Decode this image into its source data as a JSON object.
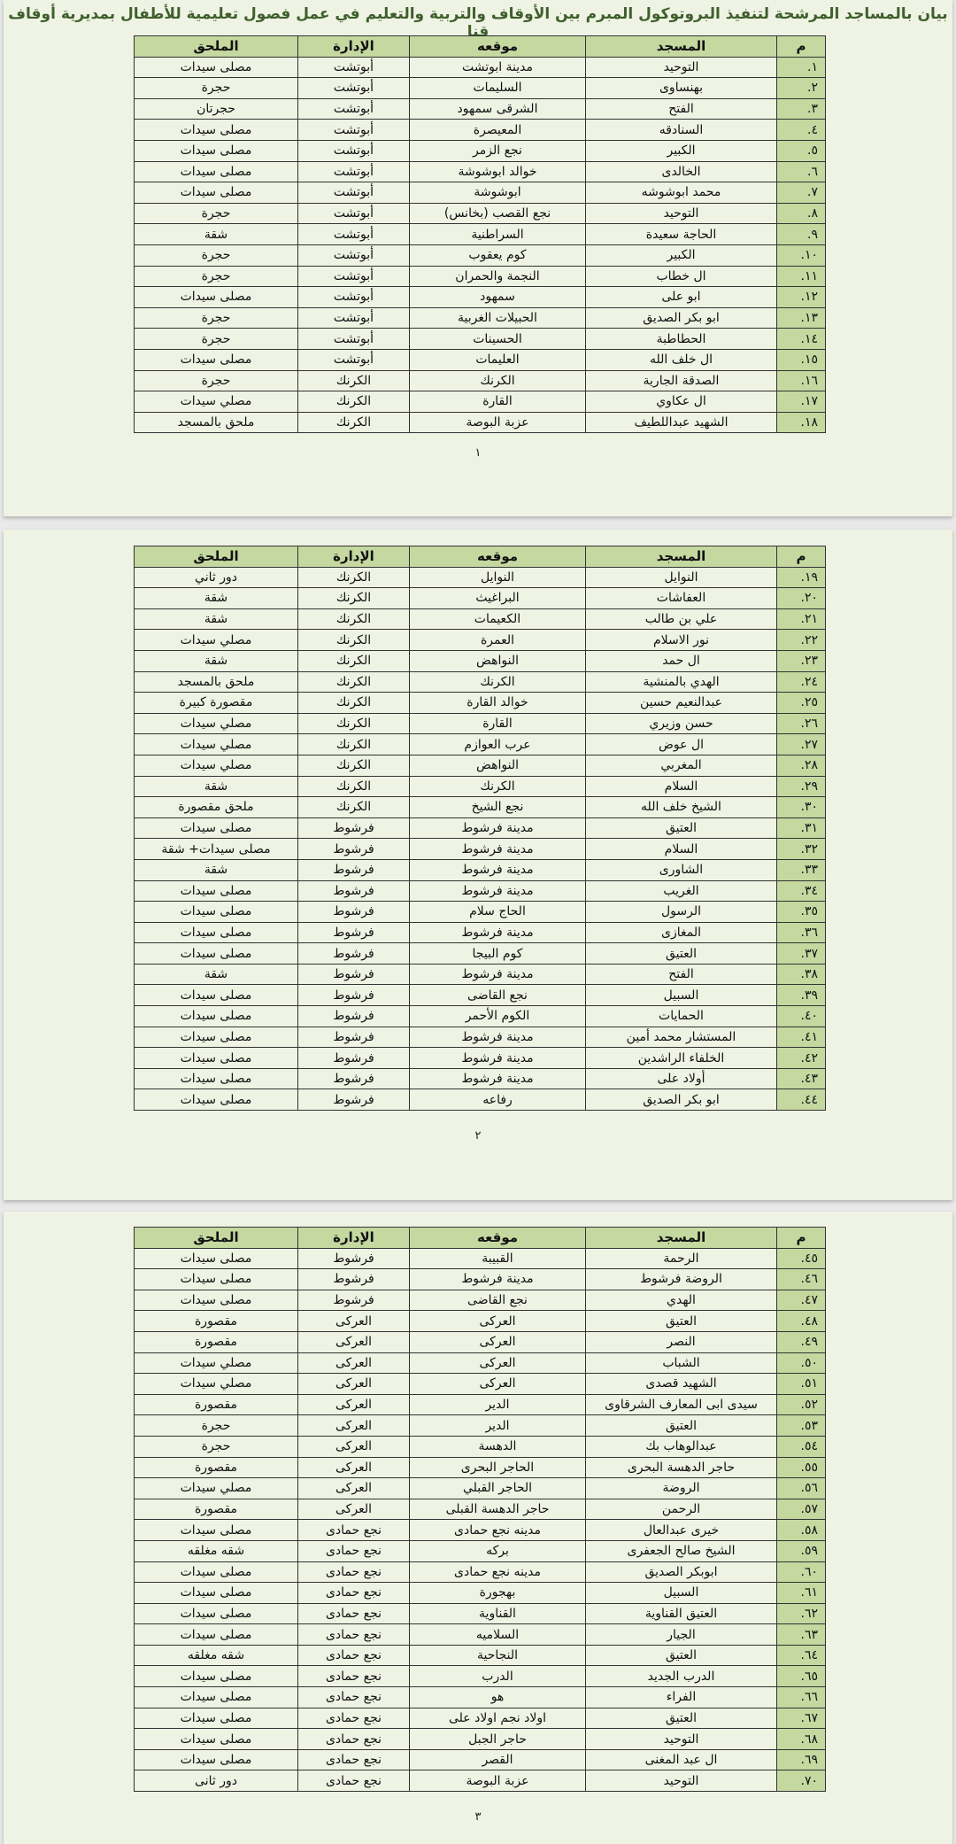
{
  "title": "بيان بالمساجد المرشحة لتنفيذ البروتوكول المبرم بين الأوقاف والتربية والتعليم في عمل فصول تعليمية للأطفال بمديرية أوقاف قنا",
  "columns": [
    "م",
    "المسجد",
    "موقعه",
    "الإدارة",
    "الملحق"
  ],
  "colors": {
    "page_bg": "#eef3e3",
    "header_bg": "#c4d8a0",
    "title": "#3f5f2c"
  },
  "pages": [
    {
      "page_number": "١",
      "rows": [
        [
          "١.",
          "التوحيد",
          "مدينة ابوتشت",
          "أبوتشت",
          "مصلى سيدات"
        ],
        [
          "٢.",
          "بهنساوى",
          "السليمات",
          "أبوتشت",
          "حجرة"
        ],
        [
          "٣.",
          "الفتح",
          "الشرقى سمهود",
          "أبوتشت",
          "حجرتان"
        ],
        [
          "٤.",
          "السنادقه",
          "المعيصرة",
          "أبوتشت",
          "مصلى سيدات"
        ],
        [
          "٥.",
          "الكبير",
          "نجع الزمر",
          "أبوتشت",
          "مصلى سيدات"
        ],
        [
          "٦.",
          "الخالدى",
          "خوالد ابوشوشة",
          "أبوتشت",
          "مصلى سيدات"
        ],
        [
          "٧.",
          "محمد ابوشوشه",
          "ابوشوشة",
          "أبوتشت",
          "مصلى سيدات"
        ],
        [
          "٨.",
          "التوحيد",
          "نجع القصب (بخانس)",
          "أبوتشت",
          "حجرة"
        ],
        [
          "٩.",
          "الحاجة سعيدة",
          "السراطنية",
          "أبوتشت",
          "شقة"
        ],
        [
          "١٠.",
          "الكبير",
          "كوم يعقوب",
          "أبوتشت",
          "حجرة"
        ],
        [
          "١١.",
          "ال خطاب",
          "النجمة والحمران",
          "أبوتشت",
          "حجرة"
        ],
        [
          "١٢.",
          "ابو على",
          "سمهود",
          "أبوتشت",
          "مصلى سيدات"
        ],
        [
          "١٣.",
          "ابو بكر الصديق",
          "الحبيلات الغربية",
          "أبوتشت",
          "حجرة"
        ],
        [
          "١٤.",
          "الحطاطبة",
          "الحسينات",
          "أبوتشت",
          "حجرة"
        ],
        [
          "١٥.",
          "ال خلف الله",
          "العليمات",
          "أبوتشت",
          "مصلى سيدات"
        ],
        [
          "١٦.",
          "الصدقة الجارية",
          "الكرنك",
          "الكرنك",
          "حجرة"
        ],
        [
          "١٧.",
          "ال عكاوي",
          "القارة",
          "الكرنك",
          "مصلي سيدات"
        ],
        [
          "١٨.",
          "الشهيد عبداللطيف",
          "عزبة البوصة",
          "الكرنك",
          "ملحق بالمسجد"
        ]
      ]
    },
    {
      "page_number": "٢",
      "rows": [
        [
          "١٩.",
          "النوايل",
          "النوايل",
          "الكرنك",
          "دور ثاني"
        ],
        [
          "٢٠.",
          "العفاشات",
          "البراغيث",
          "الكرنك",
          "شقة"
        ],
        [
          "٢١.",
          "علي بن طالب",
          "الكعيمات",
          "الكرنك",
          "شقة"
        ],
        [
          "٢٢.",
          "نور الاسلام",
          "العمرة",
          "الكرنك",
          "مصلي سيدات"
        ],
        [
          "٢٣.",
          "ال حمد",
          "النواهض",
          "الكرنك",
          "شقة"
        ],
        [
          "٢٤.",
          "الهدي بالمنشية",
          "الكرنك",
          "الكرنك",
          "ملحق بالمسجد"
        ],
        [
          "٢٥.",
          "عبدالنعيم حسين",
          "خوالد القارة",
          "الكرنك",
          "مقصورة كبيرة"
        ],
        [
          "٢٦.",
          "حسن وزيري",
          "القارة",
          "الكرنك",
          "مصلي سيدات"
        ],
        [
          "٢٧.",
          "ال عوض",
          "عرب العوازم",
          "الكرنك",
          "مصلي سيدات"
        ],
        [
          "٢٨.",
          "المغربي",
          "النواهض",
          "الكرنك",
          "مصلي سيدات"
        ],
        [
          "٢٩.",
          "السلام",
          "الكرنك",
          "الكرنك",
          "شقة"
        ],
        [
          "٣٠.",
          "الشيخ خلف الله",
          "نجع الشيخ",
          "الكرنك",
          "ملحق مقصورة"
        ],
        [
          "٣١.",
          "العتيق",
          "مدينة فرشوط",
          "فرشوط",
          "مصلى سيدات"
        ],
        [
          "٣٢.",
          "السلام",
          "مدينة فرشوط",
          "فرشوط",
          "مصلى سيدات+ شقة"
        ],
        [
          "٣٣.",
          "الشاورى",
          "مدينة فرشوط",
          "فرشوط",
          "شقة"
        ],
        [
          "٣٤.",
          "الغريب",
          "مدينة فرشوط",
          "فرشوط",
          "مصلى سيدات"
        ],
        [
          "٣٥.",
          "الرسول",
          "الحاج سلام",
          "فرشوط",
          "مصلى سيدات"
        ],
        [
          "٣٦.",
          "المغازى",
          "مدينة فرشوط",
          "فرشوط",
          "مصلى سيدات"
        ],
        [
          "٣٧.",
          "العتيق",
          "كوم البيجا",
          "فرشوط",
          "مصلى سيدات"
        ],
        [
          "٣٨.",
          "الفتح",
          "مدينة فرشوط",
          "فرشوط",
          "شقة"
        ],
        [
          "٣٩.",
          "السبيل",
          "نجع القاضى",
          "فرشوط",
          "مصلى سيدات"
        ],
        [
          "٤٠.",
          "الحمايات",
          "الكوم الأحمر",
          "فرشوط",
          "مصلى سيدات"
        ],
        [
          "٤١.",
          "المستشار محمد أمين",
          "مدينة فرشوط",
          "فرشوط",
          "مصلى سيدات"
        ],
        [
          "٤٢.",
          "الخلفاء الراشدين",
          "مدينة فرشوط",
          "فرشوط",
          "مصلى سيدات"
        ],
        [
          "٤٣.",
          "أولاد على",
          "مدينة فرشوط",
          "فرشوط",
          "مصلى سيدات"
        ],
        [
          "٤٤.",
          "ابو بكر الصديق",
          "رفاعه",
          "فرشوط",
          "مصلى سيدات"
        ]
      ]
    },
    {
      "page_number": "٣",
      "rows": [
        [
          "٤٥.",
          "الرحمة",
          "القبيبة",
          "فرشوط",
          "مصلى سيدات"
        ],
        [
          "٤٦.",
          "الروضة فرشوط",
          "مدينة فرشوط",
          "فرشوط",
          "مصلى سيدات"
        ],
        [
          "٤٧.",
          "الهدي",
          "نجع القاضى",
          "فرشوط",
          "مصلى سيدات"
        ],
        [
          "٤٨.",
          "العتيق",
          "العركى",
          "العركى",
          "مقصورة"
        ],
        [
          "٤٩.",
          "النصر",
          "العركى",
          "العركى",
          "مقصورة"
        ],
        [
          "٥٠.",
          "الشباب",
          "العركى",
          "العركى",
          "مصلي سيدات"
        ],
        [
          "٥١.",
          "الشهيد قصدى",
          "العركى",
          "العركى",
          "مصلي سيدات"
        ],
        [
          "٥٢.",
          "سيدى ابى المعارف الشرقاوى",
          "الدير",
          "العركى",
          "مقصورة"
        ],
        [
          "٥٣.",
          "العتيق",
          "الدير",
          "العركى",
          "حجرة"
        ],
        [
          "٥٤.",
          "عبدالوهاب بك",
          "الدهسة",
          "العركى",
          "حجرة"
        ],
        [
          "٥٥.",
          "حاجر الدهسة البحرى",
          "الحاجر البحرى",
          "العركى",
          "مقصورة"
        ],
        [
          "٥٦.",
          "الروضة",
          "الحاجر القبلي",
          "العركى",
          "مصلي سيدات"
        ],
        [
          "٥٧.",
          "الرحمن",
          "حاجر الدهسة القبلى",
          "العركى",
          "مقصورة"
        ],
        [
          "٥٨.",
          "خيرى عبدالعال",
          "مدينه نجع حمادى",
          "نجع حمادى",
          "مصلى سيدات"
        ],
        [
          "٥٩.",
          "الشيخ صالح الجعفرى",
          "بركه",
          "نجع حمادى",
          "شقه مغلقه"
        ],
        [
          "٦٠.",
          "ابوبكر الصديق",
          "مدينه نجع حمادى",
          "نجع حمادى",
          "مصلى سيدات"
        ],
        [
          "٦١.",
          "السبيل",
          "بهجورة",
          "نجع حمادى",
          "مصلى سيدات"
        ],
        [
          "٦٢.",
          "العتيق القناوية",
          "القناوية",
          "نجع حمادى",
          "مصلى سيدات"
        ],
        [
          "٦٣.",
          "الجيار",
          "السلاميه",
          "نجع حمادى",
          "مصلى سيدات"
        ],
        [
          "٦٤.",
          "العتيق",
          "النجاحية",
          "نجع حمادى",
          "شقه مغلقه"
        ],
        [
          "٦٥.",
          "الدرب الجديد",
          "الدرب",
          "نجع حمادى",
          "مصلى سيدات"
        ],
        [
          "٦٦.",
          "الفراء",
          "هو",
          "نجع حمادى",
          "مصلى سيدات"
        ],
        [
          "٦٧.",
          "العتيق",
          "اولاد نجم اولاد على",
          "نجع حمادى",
          "مصلى سيدات"
        ],
        [
          "٦٨.",
          "التوحيد",
          "حاجر الجبل",
          "نجع حمادى",
          "مصلى سيدات"
        ],
        [
          "٦٩.",
          "ال عبد المغنى",
          "القصر",
          "نجع حمادى",
          "مصلى سيدات"
        ],
        [
          "٧٠.",
          "التوحيد",
          "عزبة البوصة",
          "نجع حمادى",
          "دور ثانى"
        ]
      ]
    }
  ]
}
